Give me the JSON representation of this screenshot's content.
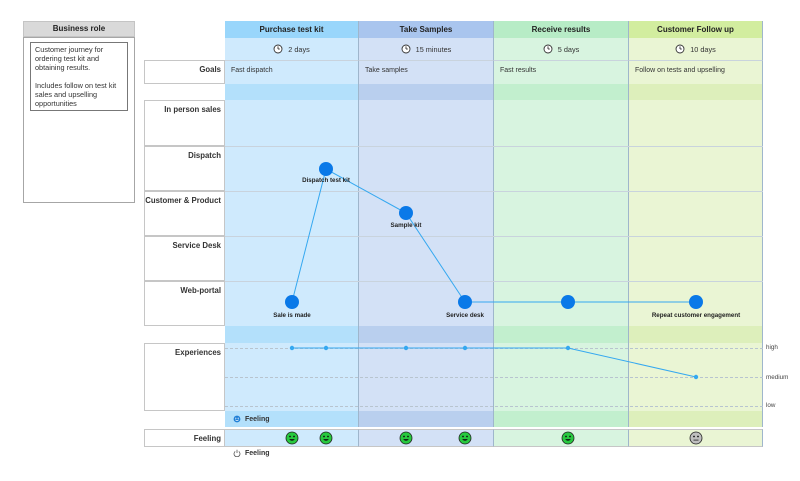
{
  "business_role": {
    "header": "Business role",
    "description": "Customer journey for\nordering test kit and\nobtaining results.\n\nIncludes follow on test kit\nsales and upselling\nopportunities"
  },
  "phases": [
    {
      "name": "Purchase test kit",
      "duration": "2 days",
      "goal": "Fast dispatch",
      "color": "#cfeafd",
      "head_color": "#99d6fb",
      "band_color": "#b3e0fb"
    },
    {
      "name": "Take Samples",
      "duration": "15 minutes",
      "goal": "Take samples",
      "color": "#d3e1f6",
      "head_color": "#a9c5ee",
      "band_color": "#b9cfee"
    },
    {
      "name": "Receive results",
      "duration": "5 days",
      "goal": "Fast results",
      "color": "#d8f4e0",
      "head_color": "#b7ecc6",
      "band_color": "#c2efce"
    },
    {
      "name": "Customer Follow up",
      "duration": "10 days",
      "goal": "Follow on tests and upselling",
      "color": "#eaf5d4",
      "head_color": "#d2ed9f",
      "band_color": "#ddefbb"
    }
  ],
  "lanes": {
    "goals": "Goals",
    "in_person_sales": "In person sales",
    "dispatch": "Dispatch",
    "customer_product": "Customer & Product",
    "service_desk": "Service Desk",
    "web_portal": "Web-portal",
    "experiences": "Experiences",
    "feeling": "Feeling"
  },
  "touchpoints": [
    {
      "label": "Sale is made",
      "lane": "Web-portal",
      "phase": "Purchase test kit"
    },
    {
      "label": "Dispatch test kit",
      "lane": "Dispatch",
      "phase": "Purchase test kit"
    },
    {
      "label": "Sample kit",
      "lane": "Customer & Product",
      "phase": "Take Samples"
    },
    {
      "label": "Service desk",
      "lane": "Web-portal",
      "phase": "Take Samples"
    },
    {
      "label": "",
      "lane": "Web-portal",
      "phase": "Receive results"
    },
    {
      "label": "Repeat customer engagement",
      "lane": "Web-portal",
      "phase": "Customer Follow up"
    }
  ],
  "experience_levels": [
    "high",
    "medium",
    "low"
  ],
  "experiences": [
    "high",
    "high",
    "high",
    "high",
    "high",
    "medium"
  ],
  "feeling_band_label": "Feeling",
  "feeling_footer_label": "Feeling",
  "feelings": [
    "happy",
    "happy",
    "happy",
    "happy",
    "happy",
    "neutral"
  ],
  "colors": {
    "node": "#0a79e8",
    "line": "#35a8f0",
    "happy": "#27c93f",
    "neutral": "#bfbfbf"
  }
}
